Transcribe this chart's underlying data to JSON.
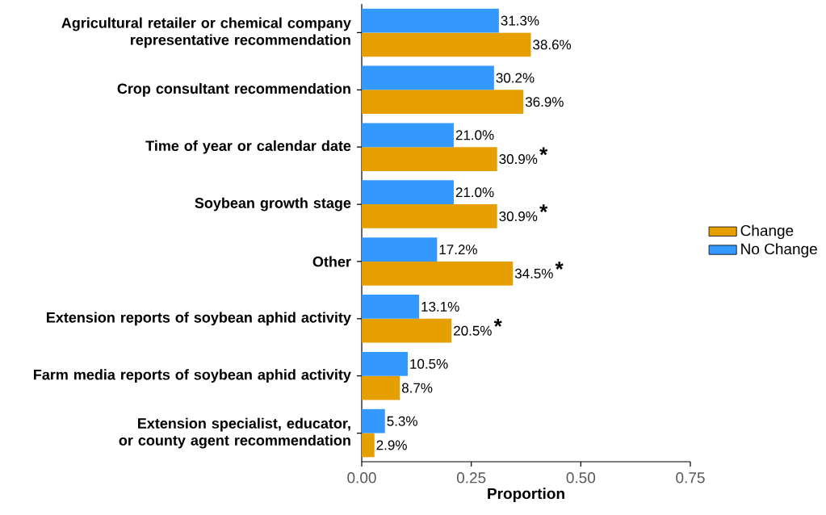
{
  "chart_data": {
    "type": "bar",
    "orientation": "horizontal",
    "xlabel": "Proportion",
    "categories": [
      "Agricultural retailer or chemical company representative recommendation",
      "Crop consultant recommendation",
      "Time of year or calendar date",
      "Soybean growth stage",
      "Other",
      "Extension reports of soybean aphid activity",
      "Farm media reports of soybean aphid activity",
      "Extension specialist, educator, or county agent recommendation"
    ],
    "series": [
      {
        "name": "Change",
        "color": "#e69f00",
        "values": [
          0.386,
          0.369,
          0.309,
          0.309,
          0.345,
          0.205,
          0.087,
          0.029
        ],
        "value_labels": [
          "38.6%",
          "36.9%",
          "30.9%",
          "30.9%",
          "34.5%",
          "20.5%",
          "8.7%",
          "2.9%"
        ]
      },
      {
        "name": "No Change",
        "color": "#3399ff",
        "values": [
          0.313,
          0.302,
          0.21,
          0.21,
          0.172,
          0.131,
          0.105,
          0.053
        ],
        "value_labels": [
          "31.3%",
          "30.2%",
          "21.0%",
          "21.0%",
          "17.2%",
          "13.1%",
          "10.5%",
          "5.3%"
        ]
      }
    ],
    "xlim": [
      0,
      0.75
    ],
    "xticks": [
      {
        "value": 0,
        "label": "0.00"
      },
      {
        "value": 0.25,
        "label": "0.25"
      },
      {
        "value": 0.5,
        "label": "0.50"
      },
      {
        "value": 0.75,
        "label": "0.75"
      }
    ],
    "legend": "right",
    "annotations": [
      {
        "text": "*",
        "x": 0.309,
        "y": "Time of year or calendar date"
      },
      {
        "text": "*",
        "x": 0.309,
        "y": "Soybean growth stage"
      },
      {
        "text": "*",
        "x": 0.345,
        "y": "Other"
      },
      {
        "text": "*",
        "x": 0.205,
        "y": "Extension reports of soybean aphid activity"
      }
    ]
  }
}
